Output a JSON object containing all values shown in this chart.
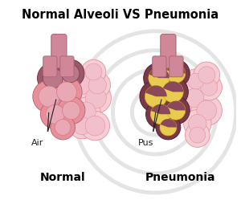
{
  "title": "Normal Alveoli VS Pneumonia",
  "label_normal": "Normal",
  "label_pneumonia": "Pneumonia",
  "label_air": "Air",
  "label_pus": "Pus",
  "bg_color": "#ffffff",
  "title_fontsize": 10.5,
  "label_fontsize": 10,
  "annotation_fontsize": 8,
  "pink_light": "#f2b8c0",
  "pink_medium": "#e8909a",
  "pink_dark": "#c06878",
  "pink_wall": "#d4788a",
  "pink_inner_air": "#e8a8b4",
  "mauve_wall": "#9a5868",
  "mauve_inner": "#b87888",
  "dark_mauve": "#7a3848",
  "pale_pink": "#f5cdd5",
  "pale_pink2": "#f0c0cc",
  "bronchiole_color": "#d08898",
  "bronchiole_dark": "#b06878",
  "yellow_pus": "#d4b020",
  "yellow_light": "#e8cc50",
  "yellow_pale": "#f0dc80",
  "dark_pus_bg": "#8a4858",
  "watermark_color": "#e4e4e4",
  "annotation_color": "#222222"
}
